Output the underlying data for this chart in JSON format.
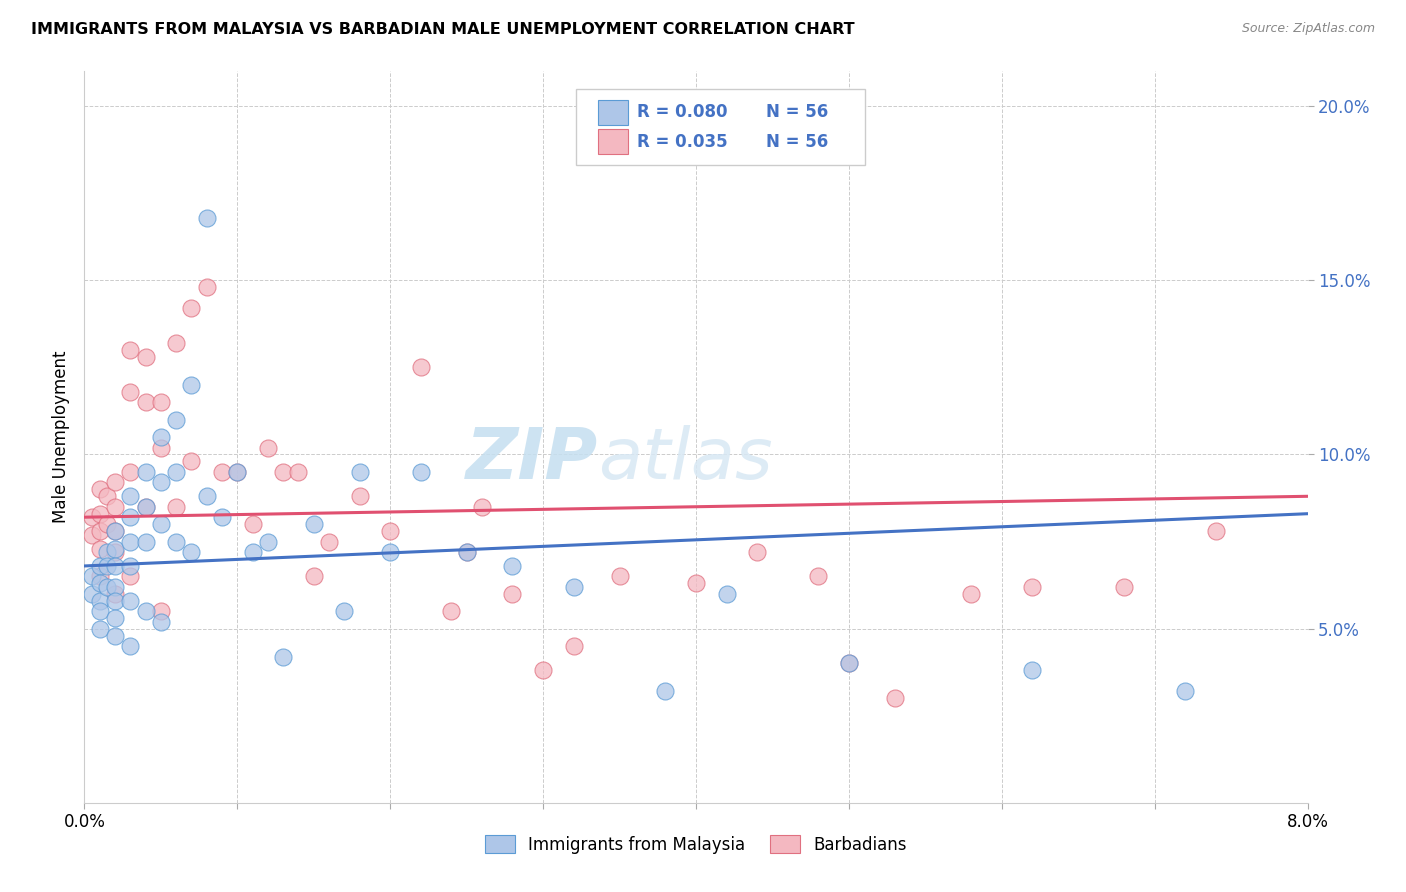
{
  "title": "IMMIGRANTS FROM MALAYSIA VS BARBADIAN MALE UNEMPLOYMENT CORRELATION CHART",
  "source": "Source: ZipAtlas.com",
  "ylabel": "Male Unemployment",
  "legend_blue_label": "Immigrants from Malaysia",
  "legend_pink_label": "Barbadians",
  "blue_R": "R = 0.080",
  "blue_N": "N = 56",
  "pink_R": "R = 0.035",
  "pink_N": "N = 56",
  "blue_color": "#aec6e8",
  "pink_color": "#f4b8c1",
  "blue_edge_color": "#5b9bd5",
  "pink_edge_color": "#e07080",
  "blue_line_color": "#4472c4",
  "pink_line_color": "#e05070",
  "watermark_color": "#ddeef8",
  "xlim": [
    0.0,
    0.08
  ],
  "ylim": [
    0.0,
    0.21
  ],
  "yticks": [
    0.05,
    0.1,
    0.15,
    0.2
  ],
  "ytick_labels": [
    "5.0%",
    "10.0%",
    "15.0%",
    "20.0%"
  ],
  "xticks": [
    0.0,
    0.01,
    0.02,
    0.03,
    0.04,
    0.05,
    0.06,
    0.07,
    0.08
  ],
  "blue_x": [
    0.0005,
    0.0005,
    0.001,
    0.001,
    0.001,
    0.001,
    0.001,
    0.0015,
    0.0015,
    0.0015,
    0.002,
    0.002,
    0.002,
    0.002,
    0.002,
    0.002,
    0.002,
    0.003,
    0.003,
    0.003,
    0.003,
    0.003,
    0.003,
    0.004,
    0.004,
    0.004,
    0.004,
    0.005,
    0.005,
    0.005,
    0.005,
    0.006,
    0.006,
    0.006,
    0.007,
    0.007,
    0.008,
    0.008,
    0.009,
    0.01,
    0.011,
    0.012,
    0.013,
    0.015,
    0.017,
    0.018,
    0.02,
    0.022,
    0.025,
    0.028,
    0.032,
    0.038,
    0.042,
    0.05,
    0.062,
    0.072
  ],
  "blue_y": [
    0.065,
    0.06,
    0.068,
    0.063,
    0.058,
    0.055,
    0.05,
    0.072,
    0.068,
    0.062,
    0.078,
    0.073,
    0.068,
    0.062,
    0.058,
    0.053,
    0.048,
    0.088,
    0.082,
    0.075,
    0.068,
    0.058,
    0.045,
    0.095,
    0.085,
    0.075,
    0.055,
    0.105,
    0.092,
    0.08,
    0.052,
    0.11,
    0.095,
    0.075,
    0.12,
    0.072,
    0.168,
    0.088,
    0.082,
    0.095,
    0.072,
    0.075,
    0.042,
    0.08,
    0.055,
    0.095,
    0.072,
    0.095,
    0.072,
    0.068,
    0.062,
    0.032,
    0.06,
    0.04,
    0.038,
    0.032
  ],
  "pink_x": [
    0.0005,
    0.0005,
    0.001,
    0.001,
    0.001,
    0.001,
    0.001,
    0.0015,
    0.0015,
    0.002,
    0.002,
    0.002,
    0.002,
    0.002,
    0.003,
    0.003,
    0.003,
    0.003,
    0.004,
    0.004,
    0.004,
    0.005,
    0.005,
    0.005,
    0.006,
    0.006,
    0.007,
    0.007,
    0.008,
    0.009,
    0.01,
    0.011,
    0.012,
    0.013,
    0.014,
    0.015,
    0.016,
    0.018,
    0.02,
    0.022,
    0.024,
    0.025,
    0.026,
    0.028,
    0.03,
    0.032,
    0.035,
    0.04,
    0.044,
    0.048,
    0.05,
    0.053,
    0.058,
    0.062,
    0.068,
    0.074
  ],
  "pink_y": [
    0.082,
    0.077,
    0.09,
    0.083,
    0.078,
    0.073,
    0.065,
    0.088,
    0.08,
    0.092,
    0.085,
    0.078,
    0.072,
    0.06,
    0.13,
    0.118,
    0.095,
    0.065,
    0.128,
    0.115,
    0.085,
    0.115,
    0.102,
    0.055,
    0.132,
    0.085,
    0.142,
    0.098,
    0.148,
    0.095,
    0.095,
    0.08,
    0.102,
    0.095,
    0.095,
    0.065,
    0.075,
    0.088,
    0.078,
    0.125,
    0.055,
    0.072,
    0.085,
    0.06,
    0.038,
    0.045,
    0.065,
    0.063,
    0.072,
    0.065,
    0.04,
    0.03,
    0.06,
    0.062,
    0.062,
    0.078
  ]
}
